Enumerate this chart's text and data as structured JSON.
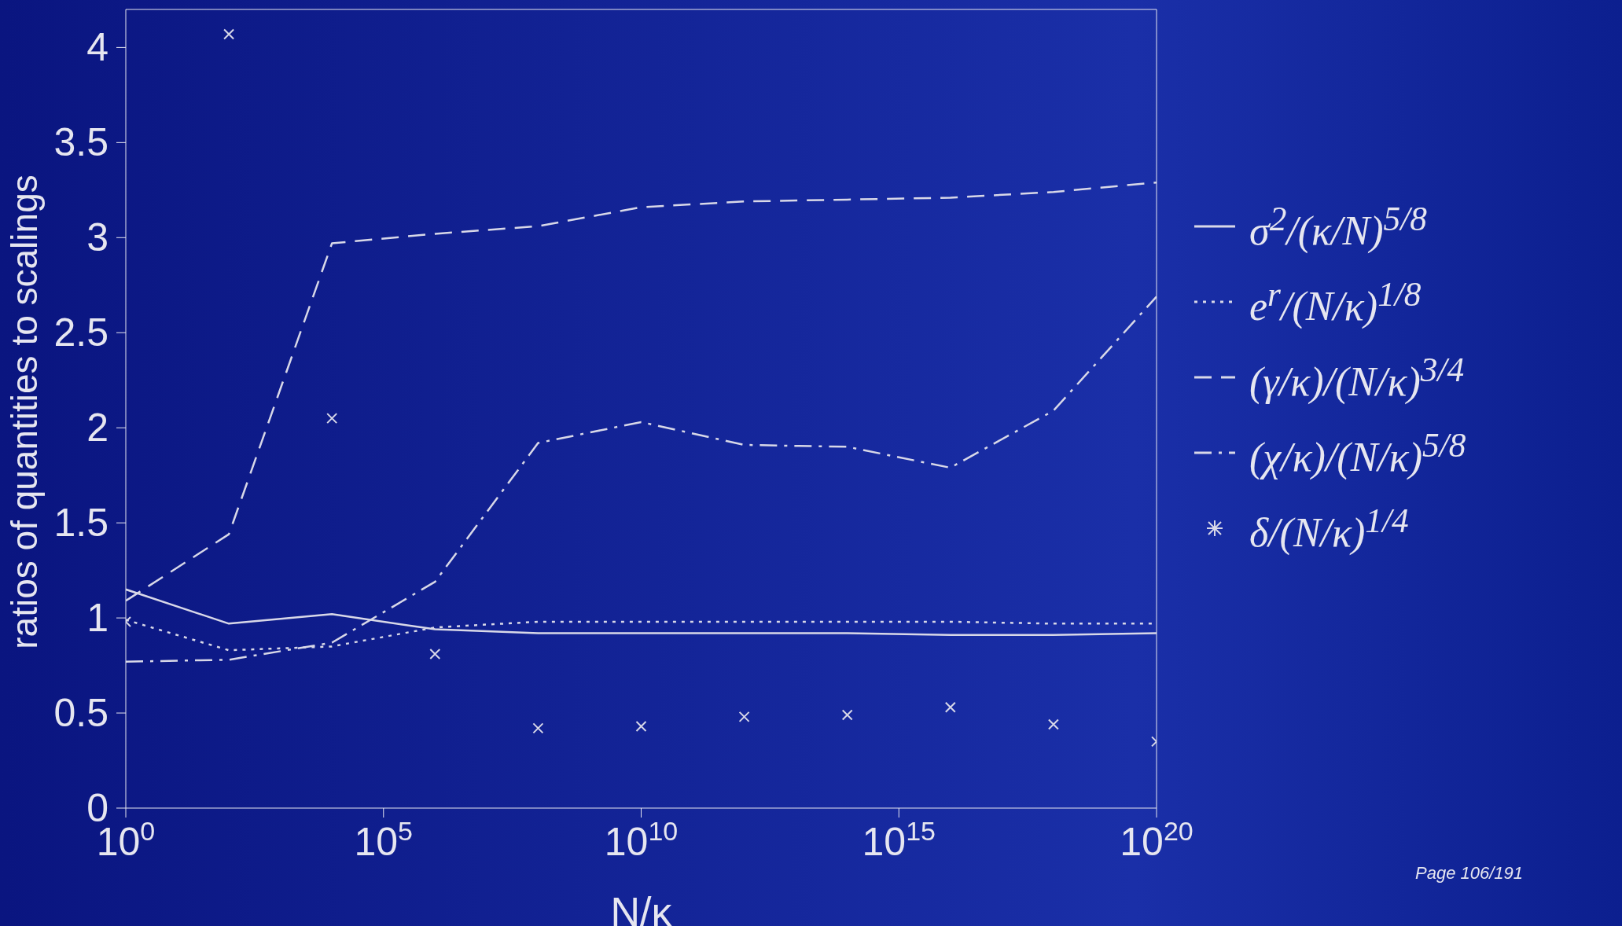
{
  "chart_data": {
    "type": "line",
    "xlabel": "N/κ",
    "ylabel": "ratios of quantities to scalings",
    "log": "x",
    "xlim": [
      1,
      1e+20
    ],
    "ylim": [
      0,
      4.2
    ],
    "xticks": [
      {
        "value": 1,
        "label": "10$^{0}$"
      },
      {
        "value": 100000.0,
        "label": "10$^{5}$"
      },
      {
        "value": 10000000000.0,
        "label": "10$^{10}$"
      },
      {
        "value": 1000000000000000.0,
        "label": "10$^{15}$"
      },
      {
        "value": 1e+20,
        "label": "10$^{20}$"
      }
    ],
    "yticks": [
      0,
      0.5,
      1,
      1.5,
      2,
      2.5,
      3,
      3.5,
      4
    ],
    "grid": false,
    "legend": "right",
    "series": [
      {
        "name": "σ$^{2}$/(κ/N)$^{5/8}$",
        "type": "line",
        "line_style": "solid",
        "color": "#d8d8e8",
        "x": [
          1,
          100.0,
          10000.0,
          1000000.0,
          100000000.0,
          10000000000.0,
          1000000000000.0,
          100000000000000.0,
          1e+16,
          1e+18,
          1e+20
        ],
        "values": [
          1.15,
          0.97,
          1.02,
          0.94,
          0.92,
          0.92,
          0.92,
          0.92,
          0.91,
          0.91,
          0.92
        ]
      },
      {
        "name": "e$^{r}$/(N/κ)$^{1/8}$",
        "type": "line",
        "line_style": "dotted",
        "color": "#d8d8e8",
        "x": [
          1,
          100.0,
          10000.0,
          1000000.0,
          100000000.0,
          10000000000.0,
          1000000000000.0,
          100000000000000.0,
          1e+16,
          1e+18,
          1e+20
        ],
        "values": [
          0.99,
          0.83,
          0.85,
          0.95,
          0.98,
          0.98,
          0.98,
          0.98,
          0.98,
          0.97,
          0.97
        ]
      },
      {
        "name": "(γ/κ)/(N/κ)$^{3/4}$",
        "type": "line",
        "line_style": "dashed",
        "color": "#d8d8e8",
        "x": [
          1,
          100.0,
          10000.0,
          1000000.0,
          100000000.0,
          10000000000.0,
          1000000000000.0,
          100000000000000.0,
          1e+16,
          1e+18,
          1e+20
        ],
        "values": [
          1.09,
          1.44,
          2.97,
          3.02,
          3.06,
          3.16,
          3.19,
          3.2,
          3.21,
          3.24,
          3.29
        ]
      },
      {
        "name": "(χ/κ)/(N/κ)$^{5/8}$",
        "type": "line",
        "line_style": "dashdot",
        "color": "#d8d8e8",
        "x": [
          1,
          100.0,
          10000.0,
          1000000.0,
          100000000.0,
          10000000000.0,
          1000000000000.0,
          100000000000000.0,
          1e+16,
          1e+18,
          1e+20
        ],
        "values": [
          0.77,
          0.78,
          0.87,
          1.19,
          1.92,
          2.03,
          1.91,
          1.9,
          1.79,
          2.09,
          2.69
        ]
      },
      {
        "name": "δ/(N/κ)$^{1/4}$",
        "type": "scatter",
        "marker": "cross",
        "color": "#d8d8e8",
        "x": [
          1,
          100.0,
          10000.0,
          1000000.0,
          100000000.0,
          10000000000.0,
          1000000000000.0,
          100000000000000.0,
          1e+16,
          1e+18,
          1e+20
        ],
        "values": [
          0.98,
          4.07,
          2.05,
          0.81,
          0.42,
          0.43,
          0.48,
          0.49,
          0.53,
          0.44,
          0.35
        ]
      }
    ],
    "annotations": [
      "Page 106/191"
    ]
  }
}
